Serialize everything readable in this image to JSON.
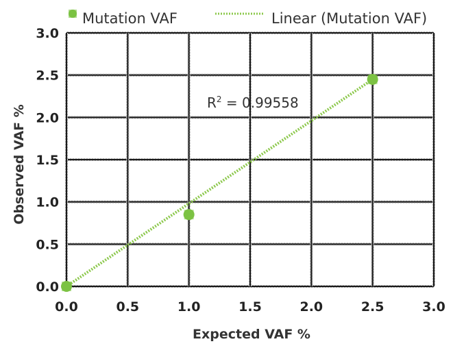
{
  "chart_data": {
    "type": "scatter",
    "title": "",
    "xlabel": "Expected VAF %",
    "ylabel": "Observed VAF %",
    "xlim": [
      0,
      3
    ],
    "ylim": [
      0,
      3
    ],
    "xticks": [
      "0.0",
      "0.5",
      "1.0",
      "1.5",
      "2.0",
      "2.5",
      "3.0"
    ],
    "yticks": [
      "0.0",
      "0.5",
      "1.0",
      "1.5",
      "2.0",
      "2.5",
      "3.0"
    ],
    "grid": true,
    "legend_position": "top",
    "series": [
      {
        "name": "Mutation VAF",
        "x": [
          0,
          1,
          2.5
        ],
        "y": [
          0,
          0.85,
          2.45
        ],
        "color": "#7cc243"
      }
    ],
    "trendline": {
      "name": "Linear (Mutation VAF)",
      "from": [
        0,
        0
      ],
      "to": [
        2.5,
        2.45
      ],
      "color": "#8cc84b"
    },
    "annotation": {
      "text_prefix": "R",
      "text_sup": "2",
      "text_value": " = 0.99558"
    }
  }
}
